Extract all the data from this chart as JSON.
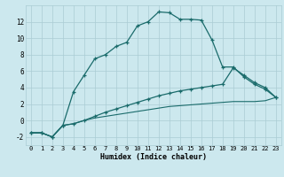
{
  "xlabel": "Humidex (Indice chaleur)",
  "background_color": "#cce8ee",
  "grid_color": "#aaccd4",
  "line_color": "#1a6b6b",
  "ylim": [
    -3,
    14
  ],
  "xlim": [
    -0.5,
    23.5
  ],
  "yticks": [
    -2,
    0,
    2,
    4,
    6,
    8,
    10,
    12
  ],
  "x_ticks": [
    0,
    1,
    2,
    3,
    4,
    5,
    6,
    7,
    8,
    9,
    10,
    11,
    12,
    13,
    14,
    15,
    16,
    17,
    18,
    19,
    20,
    21,
    22,
    23
  ],
  "x_tick_labels": [
    "0",
    "1",
    "2",
    "3",
    "4",
    "5",
    "6",
    "7",
    "8",
    "9",
    "10",
    "11",
    "12",
    "13",
    "14",
    "15",
    "16",
    "17",
    "18",
    "19",
    "20",
    "21",
    "22",
    "23"
  ],
  "curve1_x": [
    0,
    1,
    2,
    3,
    4,
    5,
    6,
    7,
    8,
    9,
    10,
    11,
    12,
    13,
    14,
    15,
    16,
    17,
    18,
    19,
    20,
    21,
    22,
    23
  ],
  "curve1_y": [
    -1.5,
    -1.5,
    -2.0,
    -0.6,
    3.5,
    5.5,
    7.5,
    8.0,
    9.0,
    9.5,
    11.5,
    12.0,
    13.2,
    13.1,
    12.3,
    12.3,
    12.2,
    9.8,
    6.5,
    6.5,
    5.3,
    4.4,
    3.8,
    2.8
  ],
  "curve2_x": [
    0,
    1,
    2,
    3,
    4,
    5,
    6,
    7,
    8,
    9,
    10,
    11,
    12,
    13,
    14,
    15,
    16,
    17,
    18,
    19,
    20,
    21,
    22,
    23
  ],
  "curve2_y": [
    -1.5,
    -1.5,
    -2.0,
    -0.6,
    -0.4,
    0.0,
    0.5,
    1.0,
    1.4,
    1.8,
    2.2,
    2.6,
    3.0,
    3.3,
    3.6,
    3.8,
    4.0,
    4.2,
    4.4,
    6.4,
    5.5,
    4.6,
    4.0,
    2.8
  ],
  "curve3_x": [
    0,
    1,
    2,
    3,
    4,
    5,
    6,
    7,
    8,
    9,
    10,
    11,
    12,
    13,
    14,
    15,
    16,
    17,
    18,
    19,
    20,
    21,
    22,
    23
  ],
  "curve3_y": [
    -1.5,
    -1.5,
    -2.0,
    -0.6,
    -0.4,
    0.0,
    0.3,
    0.5,
    0.7,
    0.9,
    1.1,
    1.3,
    1.5,
    1.7,
    1.8,
    1.9,
    2.0,
    2.1,
    2.2,
    2.3,
    2.3,
    2.3,
    2.4,
    2.8
  ]
}
